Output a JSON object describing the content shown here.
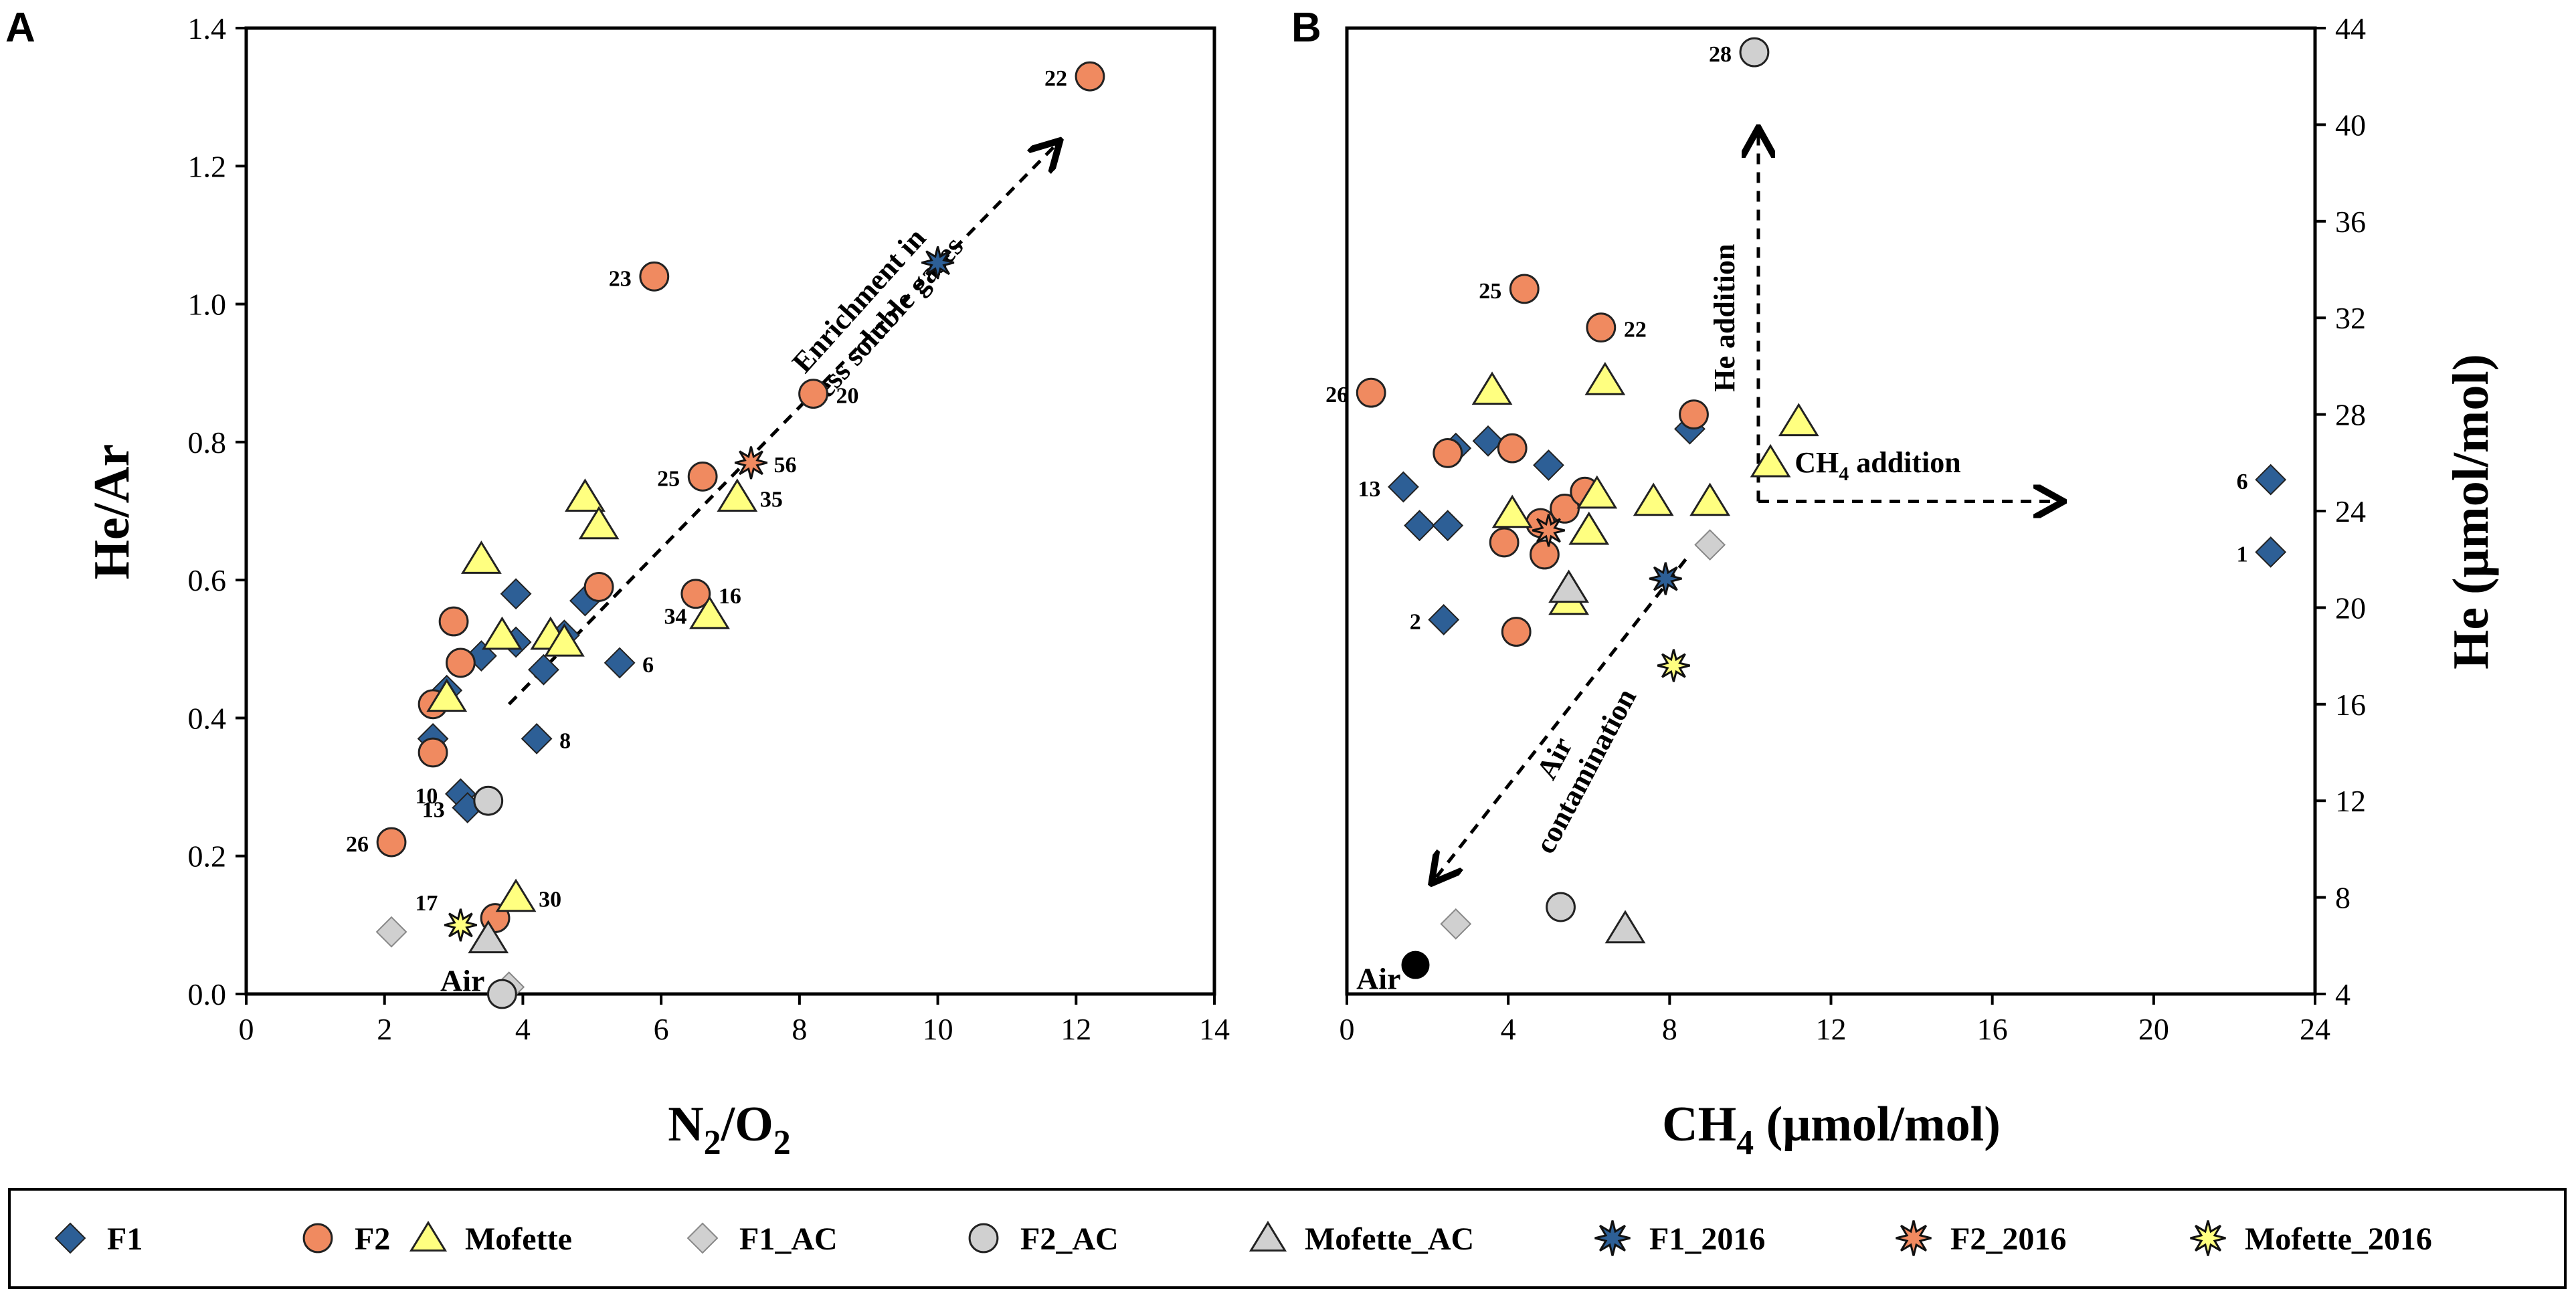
{
  "colors": {
    "F1": "#2d5f96",
    "F2": "#f08a60",
    "Mofette": "#ffff80",
    "AC": "#d0d0d0",
    "air": "#000000",
    "outline": "#222222"
  },
  "chart_data": [
    {
      "panel": "A",
      "type": "scatter",
      "xlabel": "N2/O2",
      "xlabel_main": "N",
      "xlabel_sub1": "2",
      "xlabel_mid": "/O",
      "xlabel_sub2": "2",
      "ylabel": "He/Ar",
      "xlim": [
        0,
        14
      ],
      "ylim": [
        0,
        1.4
      ],
      "xticks": [
        0,
        2,
        4,
        6,
        8,
        10,
        12,
        14
      ],
      "yticks": [
        0.0,
        0.2,
        0.4,
        0.6,
        0.8,
        1.0,
        1.2,
        1.4
      ],
      "ytick_labels": [
        "0.0",
        "0.2",
        "0.4",
        "0.6",
        "0.8",
        "1.0",
        "1.2",
        "1.4"
      ],
      "series": [
        {
          "name": "F1",
          "marker": "diamond",
          "points": [
            {
              "x": 2.7,
              "y": 0.37
            },
            {
              "x": 2.9,
              "y": 0.44
            },
            {
              "x": 3.1,
              "y": 0.29,
              "label": "10"
            },
            {
              "x": 3.2,
              "y": 0.27,
              "label": "13"
            },
            {
              "x": 3.4,
              "y": 0.49
            },
            {
              "x": 3.9,
              "y": 0.58
            },
            {
              "x": 3.9,
              "y": 0.51
            },
            {
              "x": 4.2,
              "y": 0.37,
              "label": "8"
            },
            {
              "x": 4.3,
              "y": 0.47
            },
            {
              "x": 4.6,
              "y": 0.52
            },
            {
              "x": 4.9,
              "y": 0.57
            },
            {
              "x": 5.4,
              "y": 0.48,
              "label": "6"
            }
          ]
        },
        {
          "name": "F2",
          "marker": "circle",
          "points": [
            {
              "x": 2.1,
              "y": 0.22,
              "label": "26"
            },
            {
              "x": 2.7,
              "y": 0.42
            },
            {
              "x": 2.7,
              "y": 0.35
            },
            {
              "x": 3.0,
              "y": 0.54
            },
            {
              "x": 3.1,
              "y": 0.48
            },
            {
              "x": 3.6,
              "y": 0.11
            },
            {
              "x": 5.1,
              "y": 0.59
            },
            {
              "x": 5.9,
              "y": 1.04,
              "label": "23"
            },
            {
              "x": 6.5,
              "y": 0.58,
              "label": "16"
            },
            {
              "x": 6.6,
              "y": 0.75,
              "label": "25"
            },
            {
              "x": 8.2,
              "y": 0.87,
              "label": "20"
            },
            {
              "x": 12.2,
              "y": 1.33,
              "label": "22"
            }
          ]
        },
        {
          "name": "Mofette",
          "marker": "triangle",
          "points": [
            {
              "x": 2.9,
              "y": 0.43
            },
            {
              "x": 3.4,
              "y": 0.63
            },
            {
              "x": 3.7,
              "y": 0.52
            },
            {
              "x": 3.9,
              "y": 0.14,
              "label": "30"
            },
            {
              "x": 4.4,
              "y": 0.52
            },
            {
              "x": 4.6,
              "y": 0.51
            },
            {
              "x": 4.9,
              "y": 0.72
            },
            {
              "x": 5.1,
              "y": 0.68
            },
            {
              "x": 6.7,
              "y": 0.55,
              "label": "34"
            },
            {
              "x": 7.1,
              "y": 0.72,
              "label": "35"
            }
          ]
        },
        {
          "name": "F1_AC",
          "marker": "diamond",
          "points": [
            {
              "x": 2.1,
              "y": 0.09
            },
            {
              "x": 3.8,
              "y": 0.01
            }
          ]
        },
        {
          "name": "F2_AC",
          "marker": "circle",
          "points": [
            {
              "x": 3.5,
              "y": 0.28
            },
            {
              "x": 3.7,
              "y": 0.0
            }
          ]
        },
        {
          "name": "Mofette_AC",
          "marker": "triangle",
          "points": [
            {
              "x": 3.5,
              "y": 0.08
            }
          ]
        },
        {
          "name": "F1_2016",
          "marker": "star",
          "points": [
            {
              "x": 10.0,
              "y": 1.06
            }
          ]
        },
        {
          "name": "F2_2016",
          "marker": "star",
          "points": [
            {
              "x": 7.3,
              "y": 0.77,
              "label": "56"
            }
          ]
        },
        {
          "name": "Mofette_2016",
          "marker": "star",
          "points": [
            {
              "x": 3.1,
              "y": 0.1,
              "label": "17"
            }
          ]
        }
      ],
      "air_label": {
        "text": "Air",
        "x": 3.7,
        "y": 0.01
      },
      "arrows": [
        {
          "from": [
            3.8,
            0.42
          ],
          "to": [
            11.7,
            1.23
          ]
        }
      ],
      "annotations": [
        {
          "line1": "Enrichment in",
          "line2": "less soluble gases",
          "x": 9.0,
          "y": 1.0,
          "rotate": -48
        }
      ]
    },
    {
      "panel": "B",
      "type": "scatter",
      "xlabel": "CH4 (μmol/mol)",
      "xlabel_main": "CH",
      "xlabel_sub": "4",
      "xlabel_rest": " (μmol/mol)",
      "ylabel": "He (μmol/mol)",
      "y_axis_side": "right",
      "xlim": [
        0,
        24
      ],
      "ylim": [
        4,
        44
      ],
      "xticks": [
        0,
        4,
        8,
        12,
        16,
        20,
        24
      ],
      "yticks": [
        4,
        8,
        12,
        16,
        20,
        24,
        28,
        32,
        36,
        40,
        44
      ],
      "series": [
        {
          "name": "F1",
          "marker": "diamond",
          "points": [
            {
              "x": 1.4,
              "y": 25.0,
              "label": "13"
            },
            {
              "x": 1.8,
              "y": 23.4
            },
            {
              "x": 2.4,
              "y": 19.5,
              "label": "2"
            },
            {
              "x": 2.5,
              "y": 23.4
            },
            {
              "x": 2.7,
              "y": 26.6
            },
            {
              "x": 3.5,
              "y": 26.9
            },
            {
              "x": 5.0,
              "y": 25.9
            },
            {
              "x": 8.5,
              "y": 27.4
            },
            {
              "x": 22.9,
              "y": 25.3,
              "label": "6"
            },
            {
              "x": 22.9,
              "y": 22.3,
              "label": "1"
            }
          ]
        },
        {
          "name": "F2",
          "marker": "circle",
          "points": [
            {
              "x": 0.6,
              "y": 28.9,
              "label": "26"
            },
            {
              "x": 2.5,
              "y": 26.4
            },
            {
              "x": 3.9,
              "y": 22.7
            },
            {
              "x": 4.1,
              "y": 26.6
            },
            {
              "x": 4.2,
              "y": 19.0
            },
            {
              "x": 4.4,
              "y": 33.2,
              "label": "25"
            },
            {
              "x": 4.8,
              "y": 23.5
            },
            {
              "x": 4.9,
              "y": 22.2
            },
            {
              "x": 5.4,
              "y": 24.1
            },
            {
              "x": 5.9,
              "y": 24.8
            },
            {
              "x": 6.3,
              "y": 31.6,
              "label": "22"
            },
            {
              "x": 8.6,
              "y": 28.0
            }
          ]
        },
        {
          "name": "Mofette",
          "marker": "triangle",
          "points": [
            {
              "x": 3.6,
              "y": 29.0
            },
            {
              "x": 4.1,
              "y": 23.9
            },
            {
              "x": 5.5,
              "y": 20.3
            },
            {
              "x": 6.0,
              "y": 23.2
            },
            {
              "x": 6.2,
              "y": 24.7
            },
            {
              "x": 6.4,
              "y": 29.4
            },
            {
              "x": 7.6,
              "y": 24.4
            },
            {
              "x": 9.0,
              "y": 24.4
            },
            {
              "x": 10.5,
              "y": 26.0
            },
            {
              "x": 11.2,
              "y": 27.7
            }
          ]
        },
        {
          "name": "F1_AC",
          "marker": "diamond",
          "points": [
            {
              "x": 2.7,
              "y": 6.9
            },
            {
              "x": 9.0,
              "y": 22.6
            }
          ]
        },
        {
          "name": "F2_AC",
          "marker": "circle",
          "points": [
            {
              "x": 5.3,
              "y": 7.6
            },
            {
              "x": 10.1,
              "y": 43.0,
              "label": "28"
            }
          ]
        },
        {
          "name": "Mofette_AC",
          "marker": "triangle",
          "points": [
            {
              "x": 5.5,
              "y": 20.8
            },
            {
              "x": 6.9,
              "y": 6.7
            }
          ]
        },
        {
          "name": "F1_2016",
          "marker": "star",
          "points": [
            {
              "x": 7.9,
              "y": 21.2
            }
          ]
        },
        {
          "name": "F2_2016",
          "marker": "star",
          "points": [
            {
              "x": 5.0,
              "y": 23.2
            }
          ]
        },
        {
          "name": "Mofette_2016",
          "marker": "star",
          "points": [
            {
              "x": 8.1,
              "y": 17.6
            }
          ]
        }
      ],
      "air_point": {
        "text": "Air",
        "x": 1.7,
        "y": 5.2
      },
      "arrows": [
        {
          "from": [
            8.4,
            22.0
          ],
          "to": [
            2.2,
            8.8
          ]
        },
        {
          "from": [
            10.2,
            24.4
          ],
          "to": [
            10.2,
            39.6
          ]
        },
        {
          "from": [
            10.2,
            24.4
          ],
          "to": [
            17.6,
            24.4
          ]
        }
      ],
      "annotations": [
        {
          "line1": "Air",
          "line2": "contamination",
          "x": 5.4,
          "y": 13.7,
          "rotate": -62
        },
        {
          "line1": "He addition",
          "line2": "",
          "x": 9.6,
          "y": 32.0,
          "rotate": -90
        }
      ],
      "ch4_annotation": {
        "main": "CH",
        "sub": "4",
        "rest": " addition",
        "x": 11.1,
        "y": 25.6
      }
    }
  ],
  "legend": [
    {
      "name": "F1",
      "label": "F1",
      "marker": "diamond"
    },
    {
      "name": "F2",
      "label": "F2",
      "marker": "circle"
    },
    {
      "name": "Mofette",
      "label": "Mofette",
      "marker": "triangle"
    },
    {
      "name": "F1_AC",
      "label": "F1_AC",
      "marker": "diamond"
    },
    {
      "name": "F2_AC",
      "label": "F2_AC",
      "marker": "circle"
    },
    {
      "name": "Mofette_AC",
      "label": "Mofette_AC",
      "marker": "triangle"
    },
    {
      "name": "F1_2016",
      "label": "F1_2016",
      "marker": "star"
    },
    {
      "name": "F2_2016",
      "label": "F2_2016",
      "marker": "star"
    },
    {
      "name": "Mofette_2016",
      "label": "Mofette_2016",
      "marker": "star"
    }
  ]
}
